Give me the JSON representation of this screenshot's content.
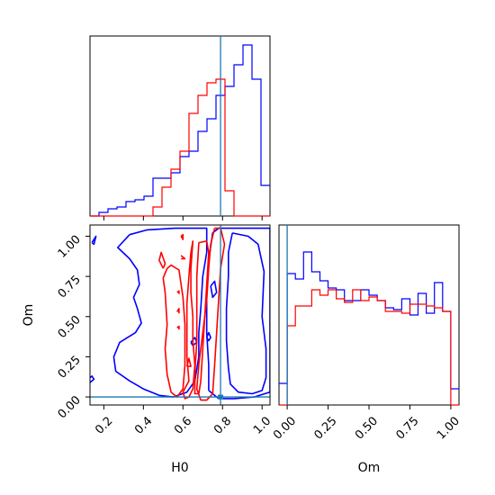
{
  "chart_data": [
    {
      "type": "histogram",
      "panel": "H0 marginal",
      "xlim": [
        0.13,
        1.04
      ],
      "truth": 0.79,
      "bins": [
        0.13,
        0.1755,
        0.221,
        0.2665,
        0.312,
        0.3575,
        0.403,
        0.4485,
        0.494,
        0.5395,
        0.585,
        0.6305,
        0.676,
        0.7215,
        0.767,
        0.8125,
        0.858,
        0.9035,
        0.949,
        0.9945,
        1.04
      ],
      "series": [
        {
          "color": "#0000ff",
          "counts": [
            0.0,
            0.02,
            0.04,
            0.05,
            0.08,
            0.09,
            0.11,
            0.21,
            0.21,
            0.24,
            0.33,
            0.36,
            0.47,
            0.54,
            0.67,
            0.72,
            0.84,
            0.95,
            0.76,
            0.17
          ]
        },
        {
          "color": "#ff0000",
          "counts": [
            0,
            0,
            0,
            0,
            0,
            0,
            0,
            0.05,
            0.16,
            0.26,
            0.36,
            0.57,
            0.67,
            0.74,
            0.76,
            0.14,
            0,
            0,
            0,
            0
          ]
        }
      ]
    },
    {
      "type": "contour",
      "panel": "H0 vs Om",
      "xlabel": "H0",
      "ylabel": "Om",
      "xlim": [
        0.13,
        1.04
      ],
      "ylim": [
        -0.05,
        1.07
      ],
      "xticks": [
        0.2,
        0.4,
        0.6,
        0.8,
        1.0
      ],
      "xticklabels": [
        "0.2",
        "0.4",
        "0.6",
        "0.8",
        "1.0"
      ],
      "yticks": [
        0.0,
        0.25,
        0.5,
        0.75,
        1.0
      ],
      "yticklabels": [
        "0.00",
        "0.25",
        "0.50",
        "0.75",
        "1.00"
      ],
      "truth": [
        0.79,
        0.0
      ],
      "contours": [
        {
          "color": "#0000ff",
          "points": [
            [
              0.33,
              1.01
            ],
            [
              0.42,
              1.04
            ],
            [
              0.56,
              1.05
            ],
            [
              0.66,
              1.05
            ],
            [
              0.72,
              1.05
            ],
            [
              0.72,
              0.9
            ],
            [
              0.7,
              0.75
            ],
            [
              0.69,
              0.55
            ],
            [
              0.68,
              0.4
            ],
            [
              0.68,
              0.25
            ],
            [
              0.66,
              0.1
            ],
            [
              0.62,
              0.03
            ],
            [
              0.55,
              0.0
            ],
            [
              0.48,
              0.01
            ],
            [
              0.4,
              0.05
            ],
            [
              0.33,
              0.1
            ],
            [
              0.26,
              0.16
            ],
            [
              0.25,
              0.25
            ],
            [
              0.28,
              0.34
            ],
            [
              0.36,
              0.4
            ],
            [
              0.39,
              0.46
            ],
            [
              0.37,
              0.55
            ],
            [
              0.35,
              0.62
            ],
            [
              0.38,
              0.7
            ],
            [
              0.37,
              0.79
            ],
            [
              0.33,
              0.86
            ],
            [
              0.27,
              0.93
            ],
            [
              0.33,
              1.01
            ]
          ]
        },
        {
          "color": "#0000ff",
          "points": [
            [
              0.85,
              1.02
            ],
            [
              0.93,
              1.0
            ],
            [
              0.98,
              0.95
            ],
            [
              1.01,
              0.78
            ],
            [
              1.0,
              0.5
            ],
            [
              1.02,
              0.3
            ],
            [
              1.02,
              0.12
            ],
            [
              1.0,
              0.04
            ],
            [
              0.95,
              0.02
            ],
            [
              0.88,
              0.03
            ],
            [
              0.84,
              0.08
            ],
            [
              0.83,
              0.18
            ],
            [
              0.82,
              0.35
            ],
            [
              0.82,
              0.55
            ],
            [
              0.83,
              0.75
            ],
            [
              0.83,
              0.9
            ],
            [
              0.85,
              1.02
            ]
          ]
        },
        {
          "color": "#0000ff",
          "points": [
            [
              0.73,
              0.04
            ],
            [
              0.73,
              0.2
            ],
            [
              0.72,
              0.4
            ],
            [
              0.72,
              0.65
            ],
            [
              0.73,
              0.85
            ],
            [
              0.75,
              1.02
            ],
            [
              0.78,
              1.05
            ],
            [
              1.02,
              1.05
            ],
            [
              1.04,
              1.05
            ],
            [
              1.04,
              0.03
            ],
            [
              0.96,
              0.0
            ],
            [
              0.86,
              -0.01
            ],
            [
              0.78,
              -0.01
            ],
            [
              0.73,
              0.04
            ]
          ]
        },
        {
          "color": "#0000ff",
          "points": [
            [
              0.13,
              0.09
            ],
            [
              0.15,
              0.11
            ],
            [
              0.14,
              0.13
            ],
            [
              0.13,
              0.12
            ]
          ]
        },
        {
          "color": "#0000ff",
          "points": [
            [
              0.14,
              0.96
            ],
            [
              0.16,
              1.0
            ],
            [
              0.15,
              0.95
            ],
            [
              0.14,
              0.96
            ]
          ]
        },
        {
          "color": "#0000ff",
          "points": [
            [
              0.74,
              0.69
            ],
            [
              0.76,
              0.72
            ],
            [
              0.77,
              0.65
            ],
            [
              0.75,
              0.62
            ],
            [
              0.74,
              0.69
            ]
          ]
        },
        {
          "color": "#0000ff",
          "points": [
            [
              0.72,
              0.37
            ],
            [
              0.73,
              0.4
            ],
            [
              0.74,
              0.37
            ],
            [
              0.73,
              0.35
            ],
            [
              0.72,
              0.37
            ]
          ]
        },
        {
          "color": "#0000ff",
          "points": [
            [
              0.64,
              0.34
            ],
            [
              0.66,
              0.37
            ],
            [
              0.67,
              0.34
            ],
            [
              0.65,
              0.32
            ],
            [
              0.64,
              0.34
            ]
          ]
        },
        {
          "color": "#ff0000",
          "points": [
            [
              0.52,
              0.8
            ],
            [
              0.54,
              0.82
            ],
            [
              0.58,
              0.79
            ],
            [
              0.6,
              0.62
            ],
            [
              0.61,
              0.45
            ],
            [
              0.61,
              0.2
            ],
            [
              0.6,
              0.05
            ],
            [
              0.57,
              0.0
            ],
            [
              0.54,
              0.03
            ],
            [
              0.52,
              0.14
            ],
            [
              0.51,
              0.3
            ],
            [
              0.52,
              0.45
            ],
            [
              0.51,
              0.65
            ],
            [
              0.5,
              0.74
            ],
            [
              0.52,
              0.8
            ]
          ]
        },
        {
          "color": "#ff0000",
          "points": [
            [
              0.64,
              0.9
            ],
            [
              0.65,
              0.97
            ],
            [
              0.64,
              0.8
            ],
            [
              0.64,
              0.65
            ],
            [
              0.65,
              0.5
            ],
            [
              0.65,
              0.35
            ],
            [
              0.66,
              0.2
            ],
            [
              0.65,
              0.05
            ],
            [
              0.63,
              0.0
            ],
            [
              0.61,
              -0.01
            ],
            [
              0.6,
              0.03
            ],
            [
              0.63,
              0.1
            ],
            [
              0.62,
              0.25
            ],
            [
              0.62,
              0.4
            ],
            [
              0.62,
              0.58
            ],
            [
              0.63,
              0.75
            ],
            [
              0.64,
              0.9
            ]
          ]
        },
        {
          "color": "#ff0000",
          "points": [
            [
              0.68,
              0.96
            ],
            [
              0.72,
              0.97
            ],
            [
              0.73,
              0.9
            ],
            [
              0.72,
              0.7
            ],
            [
              0.71,
              0.5
            ],
            [
              0.7,
              0.3
            ],
            [
              0.69,
              0.1
            ],
            [
              0.68,
              0.02
            ],
            [
              0.66,
              0.02
            ],
            [
              0.66,
              0.15
            ],
            [
              0.67,
              0.35
            ],
            [
              0.67,
              0.55
            ],
            [
              0.67,
              0.75
            ],
            [
              0.68,
              0.96
            ]
          ]
        },
        {
          "color": "#ff0000",
          "points": [
            [
              0.76,
              1.05
            ],
            [
              0.79,
              1.05
            ],
            [
              0.81,
              0.95
            ],
            [
              0.79,
              0.8
            ],
            [
              0.78,
              0.6
            ],
            [
              0.77,
              0.4
            ],
            [
              0.76,
              0.2
            ],
            [
              0.75,
              0.02
            ],
            [
              0.72,
              -0.02
            ],
            [
              0.69,
              -0.02
            ],
            [
              0.67,
              0.05
            ],
            [
              0.68,
              0.2
            ],
            [
              0.7,
              0.4
            ],
            [
              0.72,
              0.6
            ],
            [
              0.73,
              0.8
            ],
            [
              0.74,
              0.95
            ],
            [
              0.76,
              1.05
            ]
          ]
        },
        {
          "color": "#ff0000",
          "points": [
            [
              0.5,
              0.8
            ],
            [
              0.48,
              0.85
            ],
            [
              0.49,
              0.9
            ],
            [
              0.51,
              0.83
            ],
            [
              0.5,
              0.8
            ]
          ]
        },
        {
          "color": "#ff0000",
          "points": [
            [
              0.62,
              0.19
            ],
            [
              0.63,
              0.24
            ],
            [
              0.64,
              0.19
            ],
            [
              0.62,
              0.19
            ]
          ]
        },
        {
          "color": "#ff0000",
          "points": [
            [
              0.59,
              0.88
            ],
            [
              0.61,
              0.86
            ],
            [
              0.59,
              0.86
            ]
          ]
        },
        {
          "color": "#ff0000",
          "points": [
            [
              0.59,
              1.0
            ],
            [
              0.6,
              1.01
            ],
            [
              0.6,
              0.98
            ],
            [
              0.59,
              1.0
            ]
          ]
        },
        {
          "color": "#ff0000",
          "points": [
            [
              0.57,
              0.43
            ],
            [
              0.58,
              0.44
            ],
            [
              0.58,
              0.42
            ]
          ]
        },
        {
          "color": "#ff0000",
          "points": [
            [
              0.57,
              0.65
            ],
            [
              0.58,
              0.66
            ],
            [
              0.58,
              0.64
            ]
          ]
        },
        {
          "color": "#ff0000",
          "points": [
            [
              0.57,
              0.53
            ],
            [
              0.58,
              0.55
            ],
            [
              0.58,
              0.52
            ]
          ]
        }
      ]
    },
    {
      "type": "histogram",
      "panel": "Om marginal",
      "xlabel": "Om",
      "xlim": [
        -0.05,
        1.05
      ],
      "xticks": [
        0.0,
        0.25,
        0.5,
        0.75,
        1.0
      ],
      "xticklabels": [
        "0.00",
        "0.25",
        "0.50",
        "0.75",
        "1.00"
      ],
      "truth": 0.0,
      "bins": [
        -0.05,
        0.0,
        0.05,
        0.1,
        0.15,
        0.2,
        0.25,
        0.3,
        0.35,
        0.4,
        0.45,
        0.5,
        0.55,
        0.6,
        0.65,
        0.7,
        0.75,
        0.8,
        0.85,
        0.9,
        0.95,
        1.0,
        1.05
      ],
      "series": [
        {
          "color": "#0000ff",
          "counts": [
            0.12,
            0.73,
            0.7,
            0.85,
            0.74,
            0.69,
            0.65,
            0.64,
            0.58,
            0.58,
            0.64,
            0.61,
            0.58,
            0.54,
            0.53,
            0.59,
            0.5,
            0.62,
            0.51,
            0.68,
            0.52,
            0.09
          ]
        },
        {
          "color": "#ff0000",
          "counts": [
            0,
            0.44,
            0.55,
            0.55,
            0.64,
            0.61,
            0.64,
            0.59,
            0.57,
            0.64,
            0.58,
            0.6,
            0.58,
            0.52,
            0.52,
            0.51,
            0.56,
            0.56,
            0.55,
            0.54,
            0.52,
            0
          ]
        }
      ]
    }
  ]
}
